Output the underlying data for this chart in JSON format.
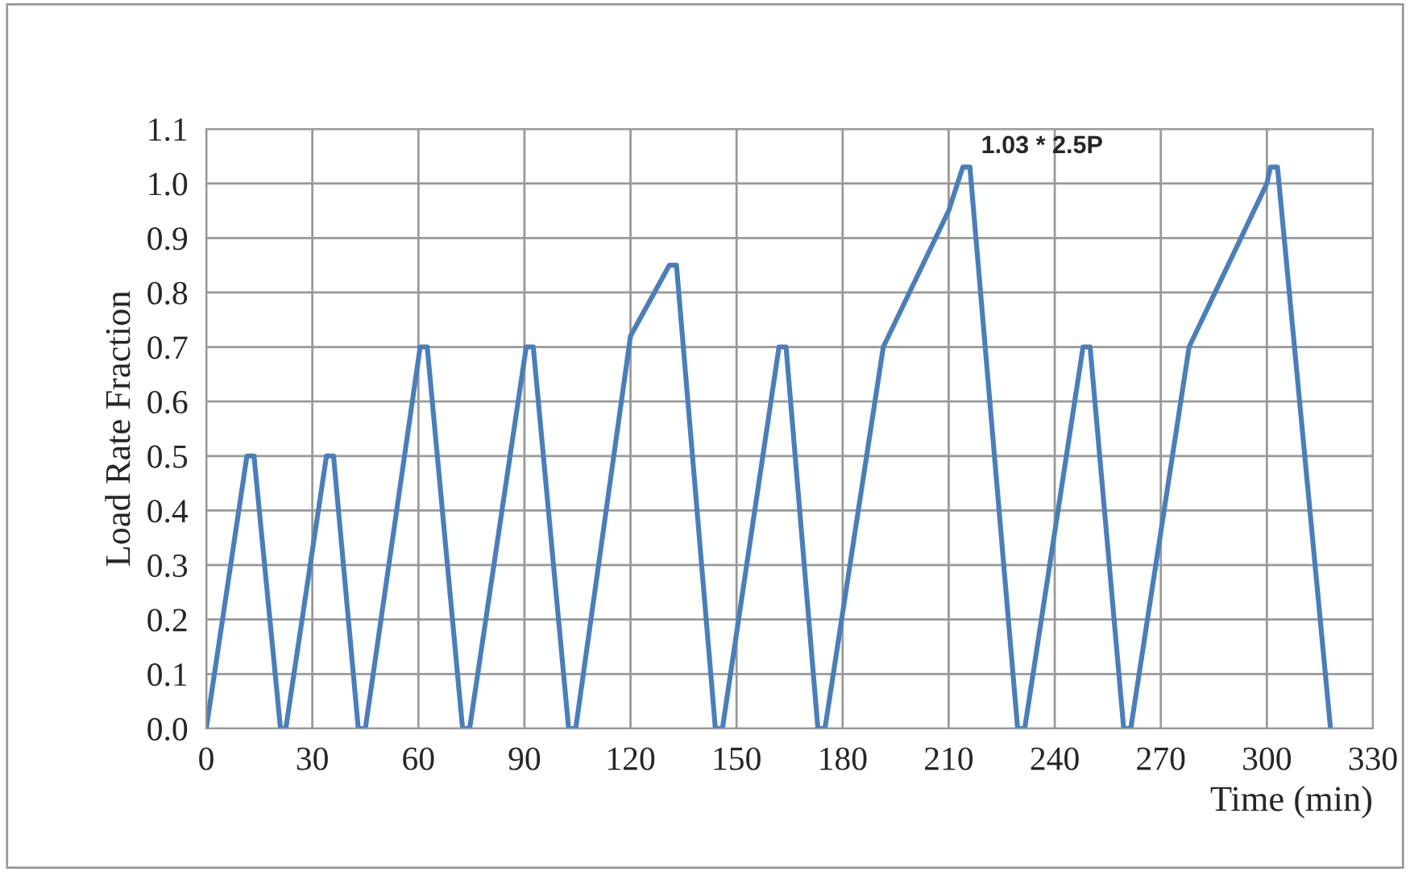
{
  "chart_data": {
    "type": "line",
    "xlabel": "Time (min)",
    "ylabel": "Load Rate Fraction",
    "x": [
      0,
      11.5,
      13.5,
      21,
      22.5,
      34,
      36,
      43,
      45,
      60.5,
      62.5,
      72.5,
      74.5,
      90.5,
      92.5,
      102.5,
      104.5,
      120,
      131,
      133,
      144,
      146,
      162,
      164,
      173,
      175,
      191.5,
      210,
      214,
      216,
      229.5,
      231.5,
      248,
      250,
      259.5,
      261.5,
      278,
      300,
      301,
      303,
      318
    ],
    "series": [
      {
        "color": "#4a7ebb",
        "values": [
          0,
          0.5,
          0.5,
          0,
          0,
          0.5,
          0.5,
          0,
          0,
          0.7,
          0.7,
          0,
          0,
          0.7,
          0.7,
          0,
          0,
          0.72,
          0.85,
          0.85,
          0,
          0,
          0.7,
          0.7,
          0,
          0,
          0.7,
          0.95,
          1.03,
          1.03,
          0,
          0,
          0.7,
          0.7,
          0,
          0,
          0.7,
          1.0,
          1.03,
          1.03,
          0
        ]
      }
    ],
    "xlim": [
      0,
      330
    ],
    "xticks": [
      0,
      30,
      60,
      90,
      120,
      150,
      180,
      210,
      240,
      270,
      300,
      330
    ],
    "ylim": [
      0,
      1.1
    ],
    "yticks": [
      {
        "value": 0,
        "label": "0.0"
      },
      {
        "value": 0.1,
        "label": "0.1"
      },
      {
        "value": 0.2,
        "label": "0.2"
      },
      {
        "value": 0.3,
        "label": "0.3"
      },
      {
        "value": 0.4,
        "label": "0.4"
      },
      {
        "value": 0.5,
        "label": "0.5"
      },
      {
        "value": 0.6,
        "label": "0.6"
      },
      {
        "value": 0.7,
        "label": "0.7"
      },
      {
        "value": 0.8,
        "label": "0.8"
      },
      {
        "value": 0.9,
        "label": "0.9"
      },
      {
        "value": 1.0,
        "label": "1.0"
      },
      {
        "value": 1.1,
        "label": "1.1"
      }
    ],
    "annotations": [
      {
        "text": "1.03 * 2.5P",
        "x": 216,
        "y": 1.03
      }
    ],
    "grid": true,
    "legend": false,
    "marker": "none",
    "line_style": "solid"
  }
}
